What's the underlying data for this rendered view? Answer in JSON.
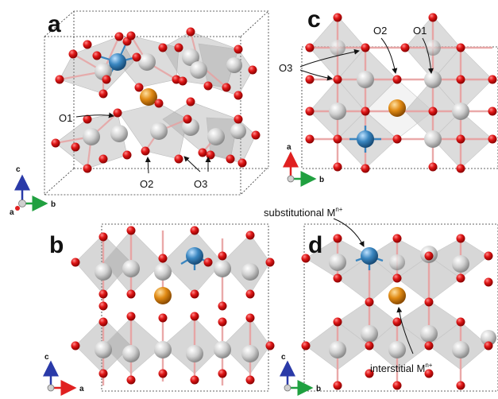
{
  "panels": {
    "a": {
      "label": "a",
      "axes": {
        "c": "c",
        "a": "a",
        "b": "b"
      },
      "sites": {
        "o1": "O1",
        "o2": "O2",
        "o3": "O3"
      }
    },
    "b": {
      "label": "b",
      "axes": {
        "c": "c",
        "a": "a"
      }
    },
    "c": {
      "label": "c",
      "axes": {
        "a": "a",
        "b": "b"
      },
      "sites": {
        "o1": "O1",
        "o2": "O2",
        "o3": "O3"
      }
    },
    "d": {
      "label": "d",
      "axes": {
        "c": "c",
        "b": "b"
      },
      "labels": {
        "substitutional": "substitutional M",
        "interstitial": "interstitial M",
        "charge": "n+"
      }
    }
  },
  "colors": {
    "oxygen": "#d40f0f",
    "host_metal": "#c8c8c8",
    "dopant": "#3a86c0",
    "interstitial": "#e08a14",
    "polyhedra": "#9a9a9a"
  }
}
